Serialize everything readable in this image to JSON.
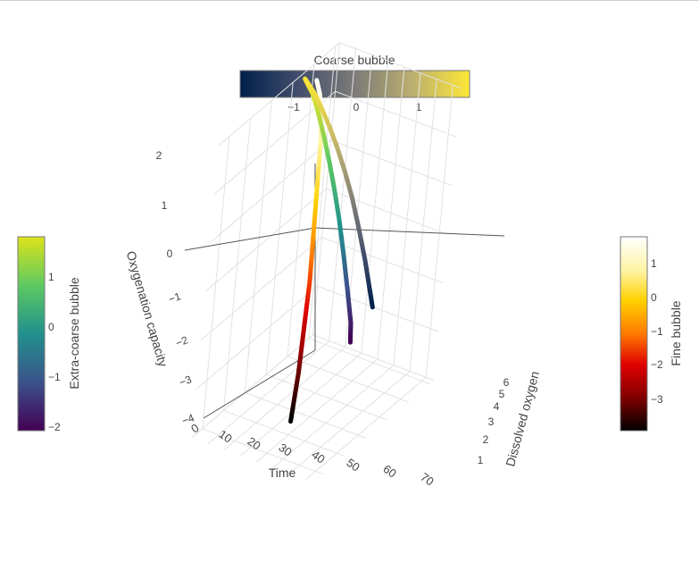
{
  "chart_data": {
    "type": "line",
    "subtype": "3d-line",
    "axes": {
      "x": {
        "title": "Time",
        "ticks": [
          "0",
          "10",
          "20",
          "30",
          "40",
          "50",
          "60",
          "70"
        ],
        "range": [
          0,
          75
        ]
      },
      "y": {
        "title": "Dissolved oxygen",
        "ticks": [
          "1",
          "2",
          "3",
          "4",
          "5",
          "6"
        ],
        "range": [
          0.5,
          6.2
        ]
      },
      "z": {
        "title": "Oxygenation capacity",
        "ticks": [
          "2",
          "1",
          "0",
          "−1",
          "−2",
          "−3",
          "−4"
        ],
        "range": [
          -4,
          2
        ]
      },
      "grid": true
    },
    "series": [
      {
        "name": "Fine bubble",
        "colorscale": "hot",
        "x": [
          0,
          5,
          10,
          15,
          20,
          25,
          30,
          35,
          40,
          45,
          50
        ],
        "y": [
          5.2,
          5.0,
          4.7,
          4.4,
          4.0,
          3.6,
          3.2,
          2.8,
          2.3,
          1.8,
          1.2
        ],
        "z": [
          1.6,
          1.45,
          1.25,
          0.95,
          0.5,
          0.0,
          -0.55,
          -1.2,
          -1.9,
          -2.6,
          -3.3
        ]
      },
      {
        "name": "Extra-coarse bubble",
        "colorscale": "viridis",
        "x": [
          0,
          8,
          16,
          24,
          32,
          40,
          48,
          56,
          64,
          70,
          72
        ],
        "y": [
          4.6,
          4.4,
          4.1,
          3.8,
          3.5,
          3.2,
          2.9,
          2.6,
          2.3,
          2.1,
          2.0
        ],
        "z": [
          1.85,
          1.7,
          1.5,
          1.25,
          0.95,
          0.6,
          0.2,
          -0.3,
          -0.85,
          -1.35,
          -1.7
        ]
      },
      {
        "name": "Coarse bubble",
        "colorscale": "cividis",
        "x": [
          0,
          8,
          16,
          24,
          32,
          40,
          48,
          56,
          64,
          70,
          74
        ],
        "y": [
          4.6,
          4.45,
          4.25,
          4.05,
          3.85,
          3.65,
          3.45,
          3.25,
          3.05,
          2.9,
          2.8
        ],
        "z": [
          1.85,
          1.72,
          1.55,
          1.35,
          1.1,
          0.8,
          0.45,
          0.0,
          -0.5,
          -0.95,
          -1.25
        ]
      }
    ],
    "colorbars": [
      {
        "title": "Coarse bubble",
        "orientation": "horizontal",
        "placement": "top-center",
        "ticks": [
          "−1",
          "0",
          "1"
        ],
        "colors": [
          "#00204c",
          "#414d6b",
          "#7c7b78",
          "#bcaf6f",
          "#fde737"
        ]
      },
      {
        "title": "Extra-coarse bubble",
        "orientation": "vertical",
        "placement": "left",
        "ticks": [
          "1",
          "0",
          "−1",
          "−2"
        ],
        "colors": [
          "#dde318",
          "#5ec962",
          "#21918c",
          "#3b528b",
          "#440154"
        ]
      },
      {
        "title": "Fine bubble",
        "orientation": "vertical",
        "placement": "right",
        "ticks": [
          "1",
          "0",
          "−1",
          "−2",
          "−3"
        ],
        "colors": [
          "#ffffff",
          "#ffe066",
          "#ffd000",
          "#ff7a00",
          "#e00000",
          "#800000",
          "#000000"
        ]
      }
    ]
  }
}
